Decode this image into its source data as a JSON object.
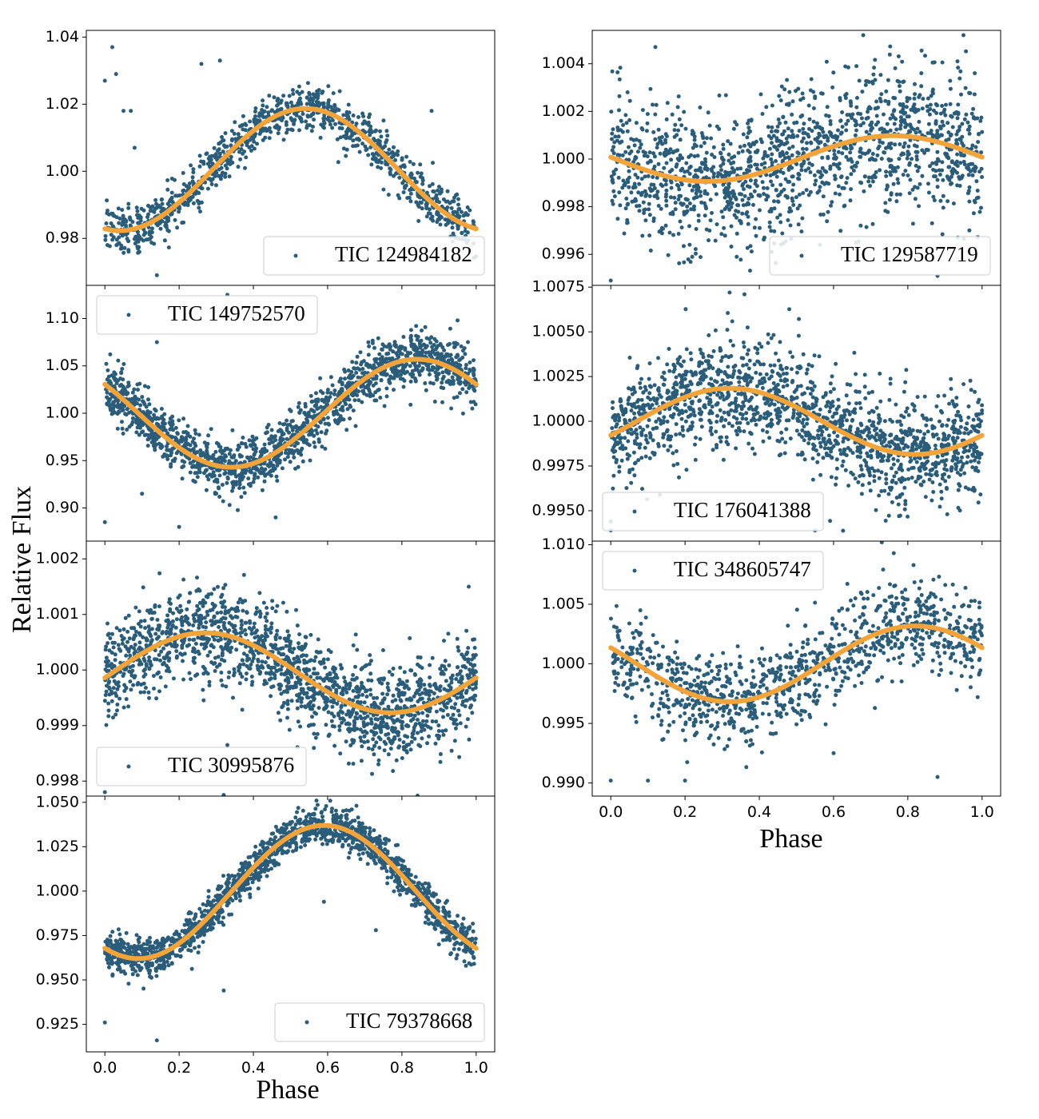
{
  "figure": {
    "ylabel": "Relative Flux",
    "xlabel": "Phase",
    "colors": {
      "points": "#2b5d7a",
      "fit": "#f2a33a",
      "frame": "#000000",
      "legend_border": "#cccccc"
    }
  },
  "chart_data": [
    {
      "type": "scatter",
      "column": "left",
      "row": 0,
      "legend": "TIC 124984182",
      "legend_loc": "lower-right",
      "ylim": [
        0.966,
        1.042
      ],
      "yticks": [
        0.98,
        1.0,
        1.02,
        1.04
      ],
      "xlim": [
        -0.05,
        1.05
      ],
      "xticks": [
        0.0,
        0.2,
        0.4,
        0.6,
        0.8,
        1.0
      ],
      "show_x_ticklabels": false,
      "fit": {
        "mean": 1.0005,
        "amp": 0.0182,
        "peak_phase": 0.54
      },
      "scatter_sigma": 0.0035,
      "n_points": 1050,
      "seed": 11,
      "outliers": [
        [
          0.0,
          1.027
        ],
        [
          0.02,
          1.037
        ],
        [
          0.03,
          1.029
        ],
        [
          0.05,
          1.018
        ],
        [
          0.07,
          1.018
        ],
        [
          0.08,
          1.007
        ],
        [
          0.26,
          1.032
        ],
        [
          0.31,
          1.033
        ],
        [
          0.88,
          1.018
        ],
        [
          0.14,
          0.969
        ]
      ]
    },
    {
      "type": "scatter",
      "column": "left",
      "row": 1,
      "legend": "TIC 149752570",
      "legend_loc": "upper-left",
      "ylim": [
        0.865,
        1.135
      ],
      "yticks": [
        0.9,
        0.95,
        1.0,
        1.05,
        1.1
      ],
      "xlim": [
        -0.05,
        1.05
      ],
      "xticks": [
        0.0,
        0.2,
        0.4,
        0.6,
        0.8,
        1.0
      ],
      "show_x_ticklabels": false,
      "fit": {
        "mean": 1.0,
        "amp": 0.057,
        "peak_phase": 0.84
      },
      "scatter_sigma": 0.014,
      "n_points": 1600,
      "seed": 23,
      "outliers": [
        [
          0.0,
          0.885
        ],
        [
          0.14,
          1.075
        ],
        [
          0.2,
          0.88
        ],
        [
          0.33,
          1.125
        ],
        [
          0.1,
          0.915
        ],
        [
          0.95,
          1.098
        ],
        [
          0.46,
          0.89
        ]
      ]
    },
    {
      "type": "scatter",
      "column": "left",
      "row": 2,
      "legend": "TIC 30995876",
      "legend_loc": "lower-left",
      "ylim": [
        0.99773,
        1.00232
      ],
      "yticks": [
        0.998,
        0.999,
        1.0,
        1.001,
        1.002
      ],
      "xlim": [
        -0.05,
        1.05
      ],
      "xticks": [
        0.0,
        0.2,
        0.4,
        0.6,
        0.8,
        1.0
      ],
      "show_x_ticklabels": false,
      "fit": {
        "mean": 0.99995,
        "amp": 0.00072,
        "peak_phase": 0.27
      },
      "scatter_sigma": 0.00042,
      "n_points": 1700,
      "seed": 37,
      "outliers": [
        [
          0.32,
          0.99775
        ],
        [
          0.0,
          0.9978
        ],
        [
          0.98,
          1.0015
        ],
        [
          0.33,
          0.99865
        ]
      ]
    },
    {
      "type": "scatter",
      "column": "left",
      "row": 3,
      "legend": "TIC 79378668",
      "legend_loc": "lower-right",
      "ylim": [
        0.9095,
        1.0535
      ],
      "yticks": [
        0.925,
        0.95,
        0.975,
        1.0,
        1.025,
        1.05
      ],
      "xlim": [
        -0.05,
        1.05
      ],
      "xticks": [
        0.0,
        0.2,
        0.4,
        0.6,
        0.8,
        1.0
      ],
      "show_x_ticklabels": true,
      "fit": {
        "mean": 0.9995,
        "amp": 0.0375,
        "peak_phase": 0.59
      },
      "scatter_sigma": 0.0055,
      "n_points": 1700,
      "seed": 41,
      "outliers": [
        [
          0.14,
          0.916
        ],
        [
          0.32,
          0.944
        ],
        [
          0.0,
          0.926
        ],
        [
          0.57,
          1.051
        ],
        [
          0.59,
          0.994
        ],
        [
          0.73,
          0.978
        ]
      ]
    },
    {
      "type": "scatter",
      "column": "right",
      "row": 0,
      "legend": "TIC 129587719",
      "legend_loc": "lower-right",
      "ylim": [
        0.9947,
        1.0054
      ],
      "yticks": [
        0.996,
        0.998,
        1.0,
        1.002,
        1.004
      ],
      "xlim": [
        -0.05,
        1.05
      ],
      "xticks": [
        0.0,
        0.2,
        0.4,
        0.6,
        0.8,
        1.0
      ],
      "show_x_ticklabels": false,
      "fit": {
        "mean": 1.00002,
        "amp": 0.00096,
        "peak_phase": 0.76
      },
      "scatter_sigma": 0.0015,
      "n_points": 1500,
      "seed": 53,
      "outliers": [
        [
          0.0,
          0.9949
        ],
        [
          0.88,
          0.9951
        ],
        [
          0.12,
          1.0047
        ],
        [
          0.68,
          1.0052
        ],
        [
          0.95,
          1.0052
        ]
      ]
    },
    {
      "type": "scatter",
      "column": "right",
      "row": 1,
      "legend": "TIC 176041388",
      "legend_loc": "lower-left",
      "ylim": [
        0.9933,
        1.0076
      ],
      "yticks": [
        0.995,
        0.9975,
        1.0,
        1.0025,
        1.005,
        1.0075
      ],
      "xlim": [
        -0.05,
        1.05
      ],
      "xticks": [
        0.0,
        0.2,
        0.4,
        0.6,
        0.8,
        1.0
      ],
      "show_x_ticklabels": false,
      "fit": {
        "mean": 1.0,
        "amp": 0.00185,
        "peak_phase": 0.32
      },
      "scatter_sigma": 0.0015,
      "n_points": 1600,
      "seed": 67,
      "outliers": [
        [
          0.0,
          0.9939
        ],
        [
          0.0,
          0.9944
        ],
        [
          0.32,
          1.0072
        ],
        [
          0.36,
          1.0071
        ],
        [
          0.55,
          0.9939
        ]
      ]
    },
    {
      "type": "scatter",
      "column": "right",
      "row": 2,
      "legend": "TIC 348605747",
      "legend_loc": "upper-left",
      "ylim": [
        0.9889,
        1.0103
      ],
      "yticks": [
        0.99,
        0.995,
        1.0,
        1.005,
        1.01
      ],
      "xlim": [
        -0.05,
        1.05
      ],
      "xticks": [
        0.0,
        0.2,
        0.4,
        0.6,
        0.8,
        1.0
      ],
      "show_x_ticklabels": true,
      "fit": {
        "mean": 1.0,
        "amp": 0.00318,
        "peak_phase": 0.82
      },
      "scatter_sigma": 0.002,
      "n_points": 1100,
      "seed": 79,
      "outliers": [
        [
          0.0,
          0.9902
        ],
        [
          0.1,
          0.9902
        ],
        [
          0.2,
          0.9902
        ],
        [
          0.73,
          1.0102
        ],
        [
          0.88,
          0.9905
        ],
        [
          0.6,
          0.9925
        ]
      ]
    }
  ]
}
